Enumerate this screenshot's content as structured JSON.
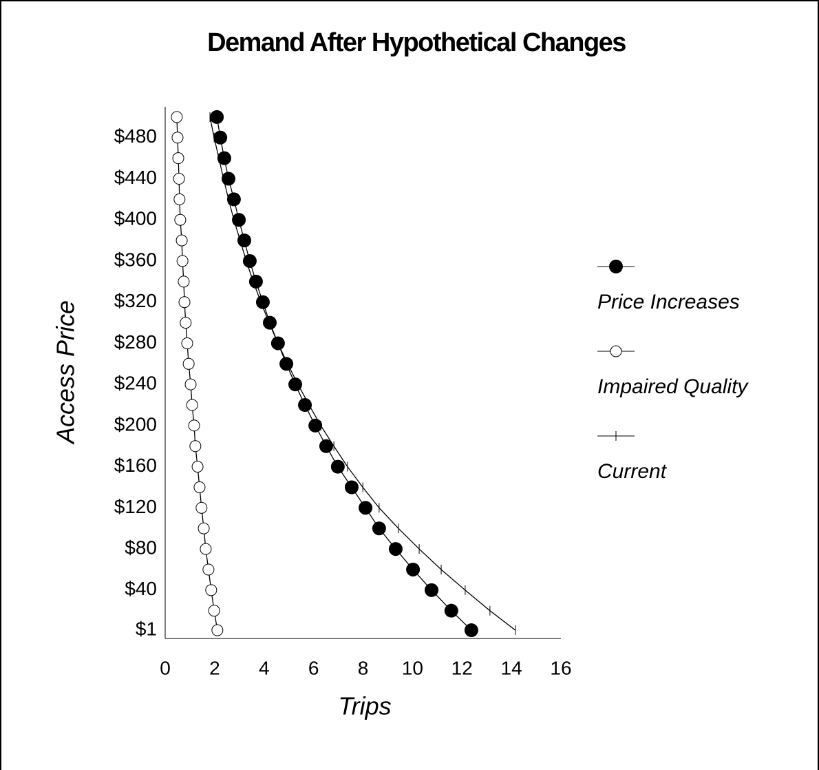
{
  "chart_data": {
    "type": "line",
    "title": "Demand After Hypothetical Changes",
    "xlabel": "Trips",
    "ylabel": "Access Price",
    "y": [
      1,
      20,
      40,
      60,
      80,
      100,
      120,
      140,
      160,
      180,
      200,
      220,
      240,
      260,
      280,
      300,
      320,
      340,
      360,
      380,
      400,
      420,
      440,
      460,
      480,
      500
    ],
    "series": [
      {
        "name": "Price Increases",
        "color": "#000000",
        "marker": "filled",
        "values": [
          12.38,
          11.57,
          10.77,
          10.02,
          9.32,
          8.65,
          8.1,
          7.54,
          6.98,
          6.51,
          6.07,
          5.65,
          5.26,
          4.9,
          4.56,
          4.23,
          3.95,
          3.67,
          3.42,
          3.2,
          2.98,
          2.78,
          2.56,
          2.39,
          2.23,
          2.09
        ]
      },
      {
        "name": "Impaired Quality",
        "color": "#000000",
        "marker": "open",
        "values": [
          2.11,
          1.98,
          1.86,
          1.75,
          1.64,
          1.56,
          1.47,
          1.39,
          1.31,
          1.22,
          1.17,
          1.09,
          1.03,
          0.95,
          0.89,
          0.83,
          0.78,
          0.75,
          0.7,
          0.67,
          0.61,
          0.58,
          0.56,
          0.53,
          0.5,
          0.47
        ]
      },
      {
        "name": "Current",
        "color": "#000000",
        "marker": "tick",
        "values": [
          14.16,
          13.13,
          12.13,
          11.16,
          10.27,
          9.43,
          8.65,
          7.99,
          7.37,
          6.82,
          6.29,
          5.82,
          5.37,
          4.95,
          4.56,
          4.2,
          3.87,
          3.56,
          3.28,
          3.03,
          2.78,
          2.56,
          2.36,
          2.17,
          1.98,
          1.81
        ]
      }
    ],
    "xlim": [
      0,
      16
    ],
    "xticks": [
      0,
      2,
      4,
      6,
      8,
      10,
      12,
      14,
      16
    ],
    "ylim": [
      -7,
      510
    ],
    "yticks": [
      {
        "value": 1,
        "label": "$1"
      },
      {
        "value": 40,
        "label": "$40"
      },
      {
        "value": 80,
        "label": "$80"
      },
      {
        "value": 120,
        "label": "$120"
      },
      {
        "value": 160,
        "label": "$160"
      },
      {
        "value": 200,
        "label": "$200"
      },
      {
        "value": 240,
        "label": "$240"
      },
      {
        "value": 280,
        "label": "$280"
      },
      {
        "value": 320,
        "label": "$320"
      },
      {
        "value": 360,
        "label": "$360"
      },
      {
        "value": 400,
        "label": "$400"
      },
      {
        "value": 440,
        "label": "$440"
      },
      {
        "value": 480,
        "label": "$480"
      }
    ],
    "grid": false,
    "legend": "right"
  }
}
